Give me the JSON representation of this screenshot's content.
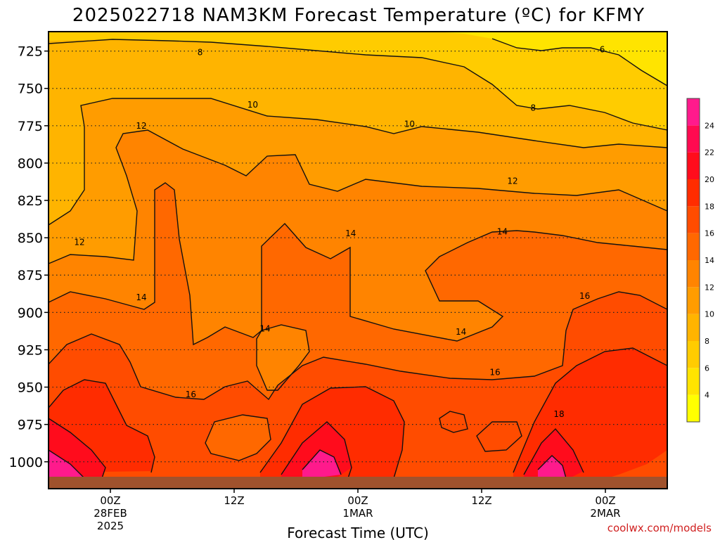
{
  "chart_data": {
    "type": "heatmap",
    "title": "2025022718 NAM3KM Forecast Temperature (ºC) for KFMY",
    "xlabel": "Forecast Time (UTC)",
    "ylabel": "",
    "y_axis": {
      "reversed": true,
      "range": [
        1018,
        712
      ],
      "ticks": [
        725,
        750,
        775,
        800,
        825,
        850,
        875,
        900,
        925,
        950,
        975,
        1000
      ]
    },
    "x_axis": {
      "range_hours_from_start": [
        0,
        60
      ],
      "ticks": [
        {
          "hour": 6,
          "label": "00Z",
          "sub1": "28FEB",
          "sub2": "2025"
        },
        {
          "hour": 18,
          "label": "12Z",
          "sub1": "",
          "sub2": ""
        },
        {
          "hour": 30,
          "label": "00Z",
          "sub1": "1MAR",
          "sub2": ""
        },
        {
          "hour": 42,
          "label": "12Z",
          "sub1": "",
          "sub2": ""
        },
        {
          "hour": 54,
          "label": "00Z",
          "sub1": "2MAR",
          "sub2": ""
        }
      ]
    },
    "grid": "dotted-horizontal",
    "colorbar": {
      "ticks": [
        4,
        6,
        8,
        10,
        12,
        14,
        16,
        18,
        20,
        22,
        24
      ],
      "colors": [
        "#ffff00",
        "#ffe400",
        "#ffcc00",
        "#ffb400",
        "#ff9c00",
        "#ff8400",
        "#ff6800",
        "#ff4c00",
        "#ff2c00",
        "#ff0c1c",
        "#ff0a50",
        "#ff1a8c"
      ]
    },
    "contour_labels": [
      {
        "value": "8",
        "hour": 14.7,
        "p": 726
      },
      {
        "value": "6",
        "hour": 53.7,
        "p": 724
      },
      {
        "value": "10",
        "hour": 19.8,
        "p": 761
      },
      {
        "value": "8",
        "hour": 47.0,
        "p": 763
      },
      {
        "value": "10",
        "hour": 35.0,
        "p": 774
      },
      {
        "value": "12",
        "hour": 9.0,
        "p": 775
      },
      {
        "value": "12",
        "hour": 45.0,
        "p": 812
      },
      {
        "value": "14",
        "hour": 44.0,
        "p": 846
      },
      {
        "value": "12",
        "hour": 3.0,
        "p": 853
      },
      {
        "value": "14",
        "hour": 29.3,
        "p": 847
      },
      {
        "value": "14",
        "hour": 9.0,
        "p": 890
      },
      {
        "value": "16",
        "hour": 52.0,
        "p": 889
      },
      {
        "value": "14",
        "hour": 21.0,
        "p": 911
      },
      {
        "value": "14",
        "hour": 40.0,
        "p": 913
      },
      {
        "value": "16",
        "hour": 43.3,
        "p": 940
      },
      {
        "value": "16",
        "hour": 13.8,
        "p": 955
      },
      {
        "value": "18",
        "hour": 49.5,
        "p": 968
      }
    ]
  },
  "footer": {
    "credit": "coolwx.com/models"
  }
}
